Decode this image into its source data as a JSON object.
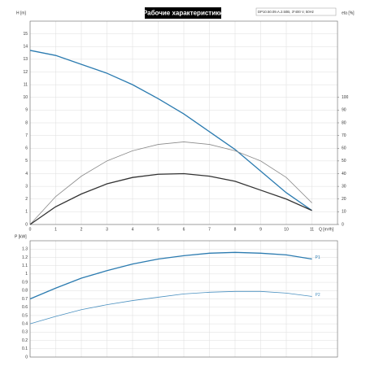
{
  "chart_data": [
    {
      "type": "line",
      "title": "Рабочие характеристики",
      "subtitle": "DP10.50.09.A.2.50B, 3*400 V, 50Hz",
      "xlabel": "Q [m³/h]",
      "ylabel": "H [m]",
      "y2label": "eta [%]",
      "x": [
        0,
        1,
        2,
        3,
        4,
        5,
        6,
        7,
        8,
        9,
        10,
        11
      ],
      "xlim": [
        0,
        12
      ],
      "xticks": [
        0,
        1,
        2,
        3,
        4,
        5,
        6,
        7,
        8,
        9,
        10,
        11
      ],
      "ylim": [
        0,
        16
      ],
      "yticks": [
        0,
        1,
        2,
        3,
        4,
        5,
        6,
        7,
        8,
        9,
        10,
        11,
        12,
        13,
        14,
        15
      ],
      "y2lim": [
        0,
        160
      ],
      "y2ticks": [
        0,
        10,
        20,
        30,
        40,
        50,
        60,
        70,
        80,
        90,
        100
      ],
      "grid": true,
      "series": [
        {
          "color": "#2b7bb0",
          "values": [
            13.7,
            13.3,
            12.6,
            11.9,
            11.0,
            9.9,
            8.7,
            7.3,
            5.9,
            4.2,
            2.5,
            1.1
          ]
        },
        {
          "color": "#8a8a8a",
          "axis": "y2",
          "values": [
            0,
            22,
            38,
            50,
            58,
            63,
            65,
            63,
            58,
            50,
            37,
            17
          ]
        },
        {
          "color": "#333333",
          "axis": "y2",
          "values": [
            0,
            14,
            24,
            32,
            37,
            39.5,
            40,
            38,
            34,
            27,
            20,
            11
          ]
        }
      ]
    },
    {
      "type": "line",
      "ylabel": "P [kW]",
      "x": [
        0,
        1,
        2,
        3,
        4,
        5,
        6,
        7,
        8,
        9,
        10,
        11
      ],
      "xlim": [
        0,
        12
      ],
      "ylim": [
        0,
        1.4
      ],
      "yticks": [
        0,
        0.1,
        0.2,
        0.3,
        0.4,
        0.5,
        0.6,
        0.7,
        0.8,
        0.9,
        1,
        1.1,
        1.2,
        1.3
      ],
      "grid": true,
      "series": [
        {
          "name": "P1",
          "color": "#2b7bb0",
          "values": [
            0.7,
            0.83,
            0.95,
            1.04,
            1.12,
            1.18,
            1.22,
            1.25,
            1.26,
            1.25,
            1.23,
            1.18
          ]
        },
        {
          "name": "P2",
          "color": "#4a90c0",
          "values": [
            0.4,
            0.49,
            0.57,
            0.63,
            0.68,
            0.72,
            0.76,
            0.78,
            0.79,
            0.79,
            0.77,
            0.73
          ]
        }
      ]
    }
  ]
}
